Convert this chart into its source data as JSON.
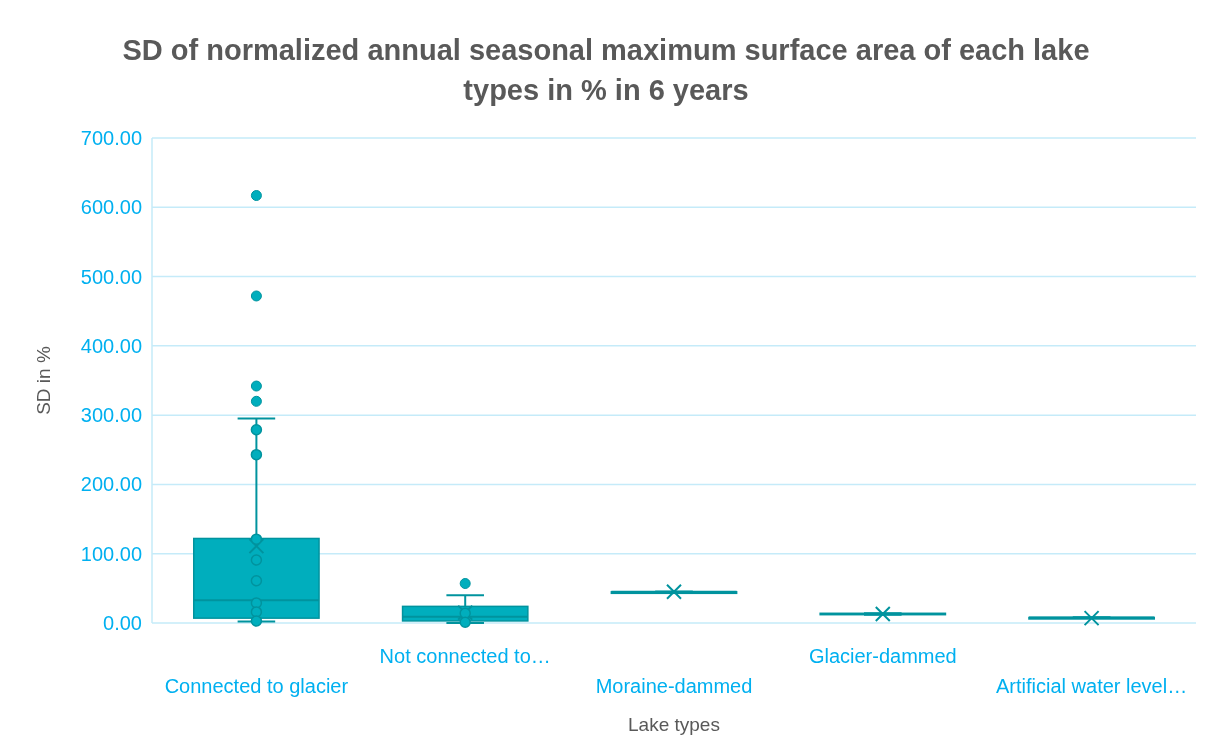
{
  "chart_data": {
    "type": "box",
    "title": "SD of normalized annual seasonal maximum surface area of each lake types in % in 6 years",
    "xlabel": "Lake types",
    "ylabel": "SD in %",
    "categories": [
      "Connected to glacier",
      "Not connected to…",
      "Moraine-dammed",
      "Glacier-dammed",
      "Artificial water level…"
    ],
    "color": "#00aebd",
    "boxes": [
      {
        "low": 2,
        "q1": 7,
        "median": 33,
        "q3": 122,
        "high": 295,
        "mean": 111,
        "outliers": [
          617,
          472,
          342,
          320
        ]
      },
      {
        "low": 0,
        "q1": 3,
        "median": 9,
        "q3": 24,
        "high": 40,
        "mean": 15,
        "outliers": [
          57
        ]
      },
      {
        "low": 45,
        "q1": 45,
        "median": 45,
        "q3": 45,
        "high": 45,
        "mean": 45
      },
      {
        "low": 12,
        "q1": 12,
        "median": 13,
        "q3": 14,
        "high": 14,
        "mean": 13
      },
      {
        "low": 8,
        "q1": 8,
        "median": 8,
        "q3": 8,
        "high": 8,
        "mean": 7
      }
    ],
    "series": [
      {
        "type": "scatter",
        "color": "#00aebd",
        "x": [
          "Connected to glacier",
          "Connected to glacier",
          "Connected to glacier",
          "Connected to glacier",
          "Connected to glacier",
          "Connected to glacier",
          "Connected to glacier",
          "Connected to glacier",
          "Not connected to…",
          "Not connected to…"
        ],
        "values": [
          279,
          243,
          121,
          91,
          61,
          29,
          16,
          3,
          14,
          1
        ]
      }
    ],
    "ylim": [
      0,
      700
    ],
    "yticks": [
      {
        "value": 0,
        "label": "0.00"
      },
      {
        "value": 100,
        "label": "100.00"
      },
      {
        "value": 200,
        "label": "200.00"
      },
      {
        "value": 300,
        "label": "300.00"
      },
      {
        "value": 400,
        "label": "400.00"
      },
      {
        "value": 500,
        "label": "500.00"
      },
      {
        "value": 600,
        "label": "600.00"
      },
      {
        "value": 700,
        "label": "700.00"
      }
    ],
    "grid": "y",
    "marker": "circle"
  }
}
